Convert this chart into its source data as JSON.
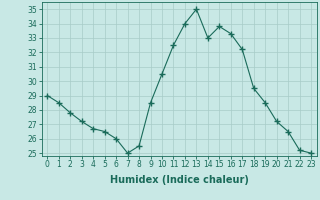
{
  "x": [
    0,
    1,
    2,
    3,
    4,
    5,
    6,
    7,
    8,
    9,
    10,
    11,
    12,
    13,
    14,
    15,
    16,
    17,
    18,
    19,
    20,
    21,
    22,
    23
  ],
  "y": [
    29,
    28.5,
    27.8,
    27.2,
    26.7,
    26.5,
    26,
    25,
    25.5,
    28.5,
    30.5,
    32.5,
    34,
    35,
    33,
    33.8,
    33.3,
    32.2,
    29.5,
    28.5,
    27.2,
    26.5,
    25.2,
    25
  ],
  "line_color": "#1a6b5a",
  "marker": "+",
  "marker_size": 4,
  "bg_color": "#c8e8e5",
  "grid_color": "#a8ccc8",
  "xlabel": "Humidex (Indice chaleur)",
  "xlim": [
    -0.5,
    23.5
  ],
  "ylim": [
    24.8,
    35.5
  ],
  "yticks": [
    25,
    26,
    27,
    28,
    29,
    30,
    31,
    32,
    33,
    34,
    35
  ],
  "xticks": [
    0,
    1,
    2,
    3,
    4,
    5,
    6,
    7,
    8,
    9,
    10,
    11,
    12,
    13,
    14,
    15,
    16,
    17,
    18,
    19,
    20,
    21,
    22,
    23
  ],
  "tick_color": "#1a6b5a",
  "axis_color": "#1a6b5a",
  "label_fontsize": 7,
  "tick_fontsize": 5.5
}
